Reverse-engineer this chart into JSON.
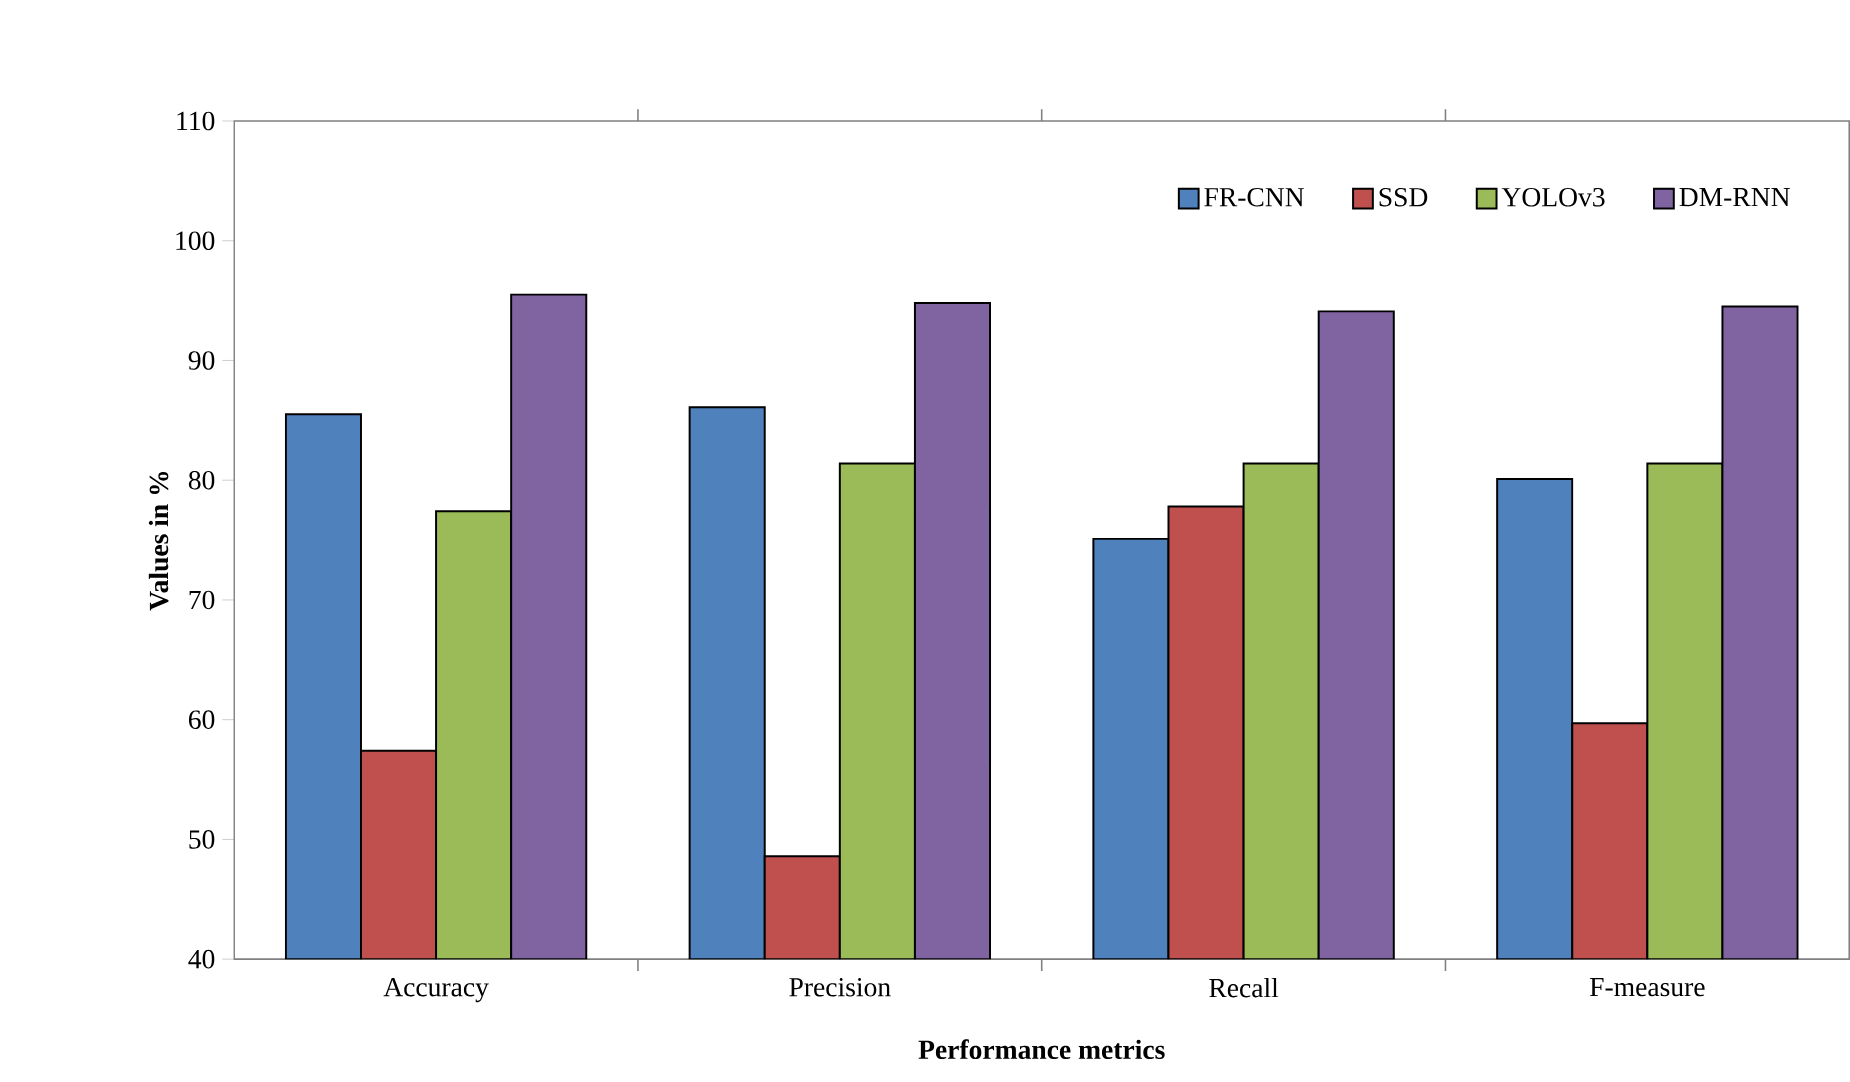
{
  "chart_data": {
    "type": "bar",
    "xlabel": "Performance metrics",
    "ylabel": "Values in %",
    "categories": [
      "Accuracy",
      "Precision",
      "Recall",
      "F-measure"
    ],
    "series": [
      {
        "name": "FR-CNN",
        "color": "#4f81bd",
        "values": [
          85.5,
          86.1,
          75.1,
          80.1
        ]
      },
      {
        "name": "SSD",
        "color": "#c0504d",
        "values": [
          57.4,
          48.6,
          77.8,
          59.7
        ]
      },
      {
        "name": "YOLOv3",
        "color": "#9bbb59",
        "values": [
          77.4,
          81.4,
          81.4,
          81.4
        ]
      },
      {
        "name": "DM-RNN",
        "color": "#8064a2",
        "values": [
          95.5,
          94.8,
          94.1,
          94.5
        ]
      }
    ],
    "ylim": [
      40,
      110
    ],
    "yticks": [
      40,
      50,
      60,
      70,
      80,
      90,
      100,
      110
    ],
    "legend": "top right",
    "grid": false
  }
}
